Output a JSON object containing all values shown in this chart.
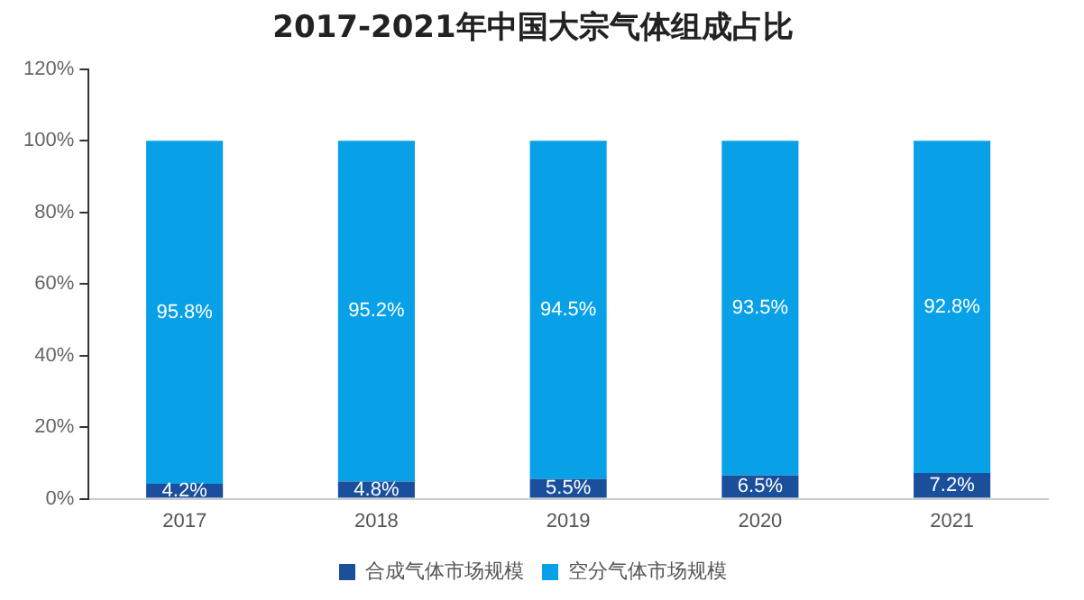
{
  "chart_data": {
    "type": "bar",
    "stacked": true,
    "title": "2017-2021年中国大宗气体组成占比",
    "categories": [
      "2017",
      "2018",
      "2019",
      "2020",
      "2021"
    ],
    "series": [
      {
        "name": "合成气体市场规模",
        "color": "#1a4f9c",
        "values": [
          4.2,
          4.8,
          5.5,
          6.5,
          7.2
        ],
        "value_labels": [
          "4.2%",
          "4.8%",
          "5.5%",
          "6.5%",
          "7.2%"
        ]
      },
      {
        "name": "空分气体市场规模",
        "color": "#08a0e6",
        "values": [
          95.8,
          95.2,
          94.5,
          93.5,
          92.8
        ],
        "value_labels": [
          "95.8%",
          "95.2%",
          "94.5%",
          "93.5%",
          "92.8%"
        ]
      }
    ],
    "ylim": [
      0,
      120
    ],
    "yticks": [
      {
        "value": 0,
        "label": "0%"
      },
      {
        "value": 20,
        "label": "20%"
      },
      {
        "value": 40,
        "label": "40%"
      },
      {
        "value": 60,
        "label": "60%"
      },
      {
        "value": 80,
        "label": "80%"
      },
      {
        "value": 100,
        "label": "100%"
      },
      {
        "value": 120,
        "label": "120%"
      }
    ],
    "grid": false,
    "legend": "bottom"
  }
}
